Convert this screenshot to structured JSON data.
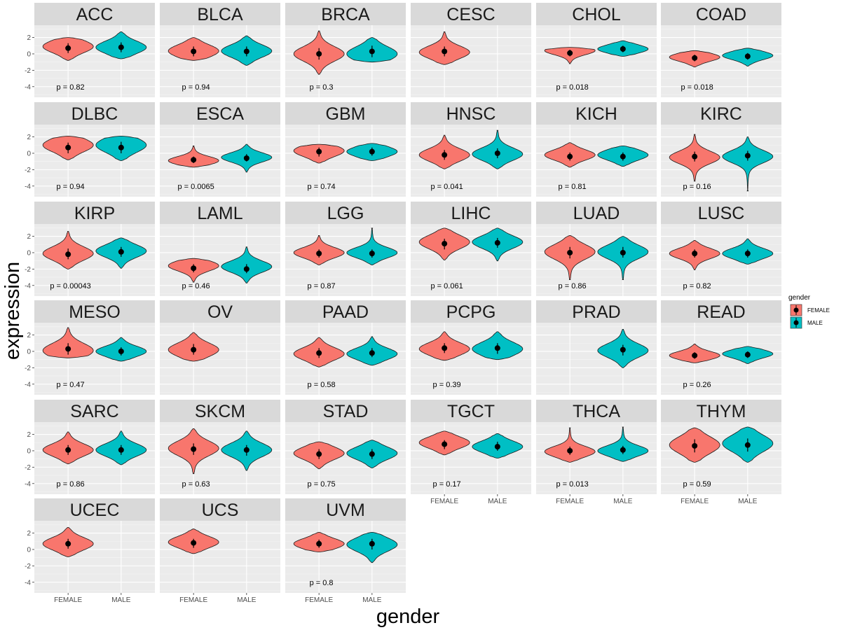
{
  "chart_data": {
    "type": "violin",
    "xlabel": "gender",
    "ylabel": "expression",
    "ylim": [
      -5.3,
      3.5
    ],
    "y_ticks": [
      2,
      0,
      -2,
      -4
    ],
    "y_tick_labels": [
      "2",
      "0",
      "-2",
      "-4"
    ],
    "x_categories": [
      "FEMALE",
      "MALE"
    ],
    "legend": {
      "title": "gender",
      "position": "right",
      "entries": [
        {
          "label": "FEMALE",
          "color": "#f8766d"
        },
        {
          "label": "MALE",
          "color": "#00bfc4"
        }
      ]
    },
    "facets": [
      {
        "name": "ACC",
        "p_label": "p = 0.82",
        "female": {
          "mean": 0.7,
          "sd_low": 0.1,
          "sd_high": 1.3,
          "min": -0.8,
          "max": 2.0,
          "peak": 0.9
        },
        "male": {
          "mean": 0.8,
          "sd_low": 0.2,
          "sd_high": 1.4,
          "min": -0.6,
          "max": 2.7,
          "peak": 0.8
        }
      },
      {
        "name": "BLCA",
        "p_label": "p = 0.94",
        "female": {
          "mean": 0.3,
          "sd_low": -0.3,
          "sd_high": 0.9,
          "min": -0.8,
          "max": 2.0,
          "peak": 0.35
        },
        "male": {
          "mean": 0.3,
          "sd_low": -0.3,
          "sd_high": 0.9,
          "min": -1.4,
          "max": 2.2,
          "peak": 0.35
        }
      },
      {
        "name": "BRCA",
        "p_label": "p = 0.3",
        "female": {
          "mean": 0.0,
          "sd_low": -0.7,
          "sd_high": 0.7,
          "min": -2.5,
          "max": 2.8,
          "peak": 0.0
        },
        "male": {
          "mean": 0.3,
          "sd_low": -0.4,
          "sd_high": 1.0,
          "min": -1.0,
          "max": 2.0,
          "peak": 0.0
        }
      },
      {
        "name": "CESC",
        "p_label": "",
        "female": {
          "mean": 0.3,
          "sd_low": -0.3,
          "sd_high": 0.9,
          "min": -1.3,
          "max": 2.7,
          "peak": 0.2
        }
      },
      {
        "name": "CHOL",
        "p_label": "p = 0.018",
        "female": {
          "mean": 0.1,
          "sd_low": -0.3,
          "sd_high": 0.5,
          "min": -1.2,
          "max": 0.8,
          "peak": 0.4
        },
        "male": {
          "mean": 0.6,
          "sd_low": 0.2,
          "sd_high": 1.0,
          "min": -0.3,
          "max": 1.6,
          "peak": 0.6
        }
      },
      {
        "name": "COAD",
        "p_label": "p = 0.018",
        "female": {
          "mean": -0.5,
          "sd_low": -0.9,
          "sd_high": -0.1,
          "min": -1.6,
          "max": 0.4,
          "peak": -0.4
        },
        "male": {
          "mean": -0.3,
          "sd_low": -0.7,
          "sd_high": 0.1,
          "min": -1.5,
          "max": 0.7,
          "peak": -0.2
        }
      },
      {
        "name": "DLBC",
        "p_label": "p = 0.94",
        "female": {
          "mean": 0.7,
          "sd_low": 0.0,
          "sd_high": 1.3,
          "min": -0.8,
          "max": 2.1,
          "peak": 1.0
        },
        "male": {
          "mean": 0.7,
          "sd_low": 0.0,
          "sd_high": 1.4,
          "min": -0.9,
          "max": 2.1,
          "peak": 1.0
        }
      },
      {
        "name": "ESCA",
        "p_label": "p = 0.0065",
        "female": {
          "mean": -0.8,
          "sd_low": -1.2,
          "sd_high": -0.4,
          "min": -1.7,
          "max": 0.9,
          "peak": -0.9
        },
        "male": {
          "mean": -0.6,
          "sd_low": -1.0,
          "sd_high": -0.1,
          "min": -2.3,
          "max": 1.1,
          "peak": -0.5
        }
      },
      {
        "name": "GBM",
        "p_label": "p = 0.74",
        "female": {
          "mean": 0.2,
          "sd_low": -0.4,
          "sd_high": 0.7,
          "min": -1.2,
          "max": 1.1,
          "peak": 0.3
        },
        "male": {
          "mean": 0.2,
          "sd_low": -0.3,
          "sd_high": 0.7,
          "min": -0.9,
          "max": 1.2,
          "peak": 0.2
        }
      },
      {
        "name": "HNSC",
        "p_label": "p = 0.041",
        "female": {
          "mean": -0.2,
          "sd_low": -0.8,
          "sd_high": 0.4,
          "min": -1.9,
          "max": 2.2,
          "peak": -0.2
        },
        "male": {
          "mean": 0.0,
          "sd_low": -0.6,
          "sd_high": 0.6,
          "min": -1.9,
          "max": 2.8,
          "peak": -0.1
        }
      },
      {
        "name": "KICH",
        "p_label": "p = 0.81",
        "female": {
          "mean": -0.4,
          "sd_low": -0.9,
          "sd_high": 0.1,
          "min": -1.7,
          "max": 1.3,
          "peak": -0.2
        },
        "male": {
          "mean": -0.4,
          "sd_low": -0.9,
          "sd_high": 0.1,
          "min": -1.6,
          "max": 0.9,
          "peak": -0.2
        }
      },
      {
        "name": "KIRC",
        "p_label": "p = 0.16",
        "female": {
          "mean": -0.4,
          "sd_low": -1.0,
          "sd_high": 0.2,
          "min": -3.4,
          "max": 2.3,
          "peak": -0.5
        },
        "male": {
          "mean": -0.3,
          "sd_low": -0.9,
          "sd_high": 0.3,
          "min": -4.6,
          "max": 2.0,
          "peak": -0.4
        }
      },
      {
        "name": "KIRP",
        "p_label": "p = 0.00043",
        "female": {
          "mean": -0.2,
          "sd_low": -0.8,
          "sd_high": 0.5,
          "min": -2.0,
          "max": 2.6,
          "peak": -0.1
        },
        "male": {
          "mean": 0.1,
          "sd_low": -0.5,
          "sd_high": 0.7,
          "min": -1.9,
          "max": 1.8,
          "peak": 0.2
        }
      },
      {
        "name": "LAML",
        "p_label": "p = 0.46",
        "female": {
          "mean": -1.9,
          "sd_low": -2.4,
          "sd_high": -1.4,
          "min": -3.6,
          "max": -0.7,
          "peak": -1.6
        },
        "male": {
          "mean": -2.0,
          "sd_low": -2.5,
          "sd_high": -1.4,
          "min": -3.7,
          "max": 0.7,
          "peak": -1.7
        }
      },
      {
        "name": "LGG",
        "p_label": "p = 0.87",
        "female": {
          "mean": -0.1,
          "sd_low": -0.6,
          "sd_high": 0.4,
          "min": -1.5,
          "max": 2.1,
          "peak": 0.0
        },
        "male": {
          "mean": -0.1,
          "sd_low": -0.6,
          "sd_high": 0.4,
          "min": -1.5,
          "max": 3.0,
          "peak": 0.0
        }
      },
      {
        "name": "LIHC",
        "p_label": "p = 0.061",
        "female": {
          "mean": 1.1,
          "sd_low": 0.4,
          "sd_high": 1.7,
          "min": -0.9,
          "max": 3.0,
          "peak": 1.3
        },
        "male": {
          "mean": 1.2,
          "sd_low": 0.6,
          "sd_high": 1.8,
          "min": -1.0,
          "max": 3.0,
          "peak": 1.3
        }
      },
      {
        "name": "LUAD",
        "p_label": "p = 0.86",
        "female": {
          "mean": 0.0,
          "sd_low": -0.7,
          "sd_high": 0.7,
          "min": -3.3,
          "max": 2.1,
          "peak": 0.1
        },
        "male": {
          "mean": 0.0,
          "sd_low": -0.6,
          "sd_high": 0.7,
          "min": -3.3,
          "max": 2.0,
          "peak": 0.1
        }
      },
      {
        "name": "LUSC",
        "p_label": "p = 0.82",
        "female": {
          "mean": -0.1,
          "sd_low": -0.6,
          "sd_high": 0.4,
          "min": -2.1,
          "max": 1.5,
          "peak": -0.1
        },
        "male": {
          "mean": -0.1,
          "sd_low": -0.6,
          "sd_high": 0.4,
          "min": -1.4,
          "max": 1.7,
          "peak": -0.1
        }
      },
      {
        "name": "MESO",
        "p_label": "p = 0.47",
        "female": {
          "mean": 0.3,
          "sd_low": -0.4,
          "sd_high": 1.0,
          "min": -0.8,
          "max": 2.9,
          "peak": 0.1
        },
        "male": {
          "mean": 0.0,
          "sd_low": -0.5,
          "sd_high": 0.5,
          "min": -1.2,
          "max": 1.7,
          "peak": 0.0
        }
      },
      {
        "name": "OV",
        "p_label": "",
        "female": {
          "mean": 0.2,
          "sd_low": -0.4,
          "sd_high": 0.9,
          "min": -1.2,
          "max": 2.3,
          "peak": 0.2
        }
      },
      {
        "name": "PAAD",
        "p_label": "p = 0.58",
        "female": {
          "mean": -0.2,
          "sd_low": -0.8,
          "sd_high": 0.4,
          "min": -1.9,
          "max": 1.7,
          "peak": -0.3
        },
        "male": {
          "mean": -0.2,
          "sd_low": -0.7,
          "sd_high": 0.4,
          "min": -1.7,
          "max": 1.8,
          "peak": -0.3
        }
      },
      {
        "name": "PCPG",
        "p_label": "p = 0.39",
        "female": {
          "mean": 0.4,
          "sd_low": -0.2,
          "sd_high": 1.0,
          "min": -1.1,
          "max": 2.4,
          "peak": 0.3
        },
        "male": {
          "mean": 0.4,
          "sd_low": -0.3,
          "sd_high": 1.0,
          "min": -1.0,
          "max": 2.4,
          "peak": 0.3
        }
      },
      {
        "name": "PRAD",
        "p_label": "",
        "male": {
          "mean": 0.2,
          "sd_low": -0.5,
          "sd_high": 0.8,
          "min": -2.0,
          "max": 2.7,
          "peak": 0.1
        }
      },
      {
        "name": "READ",
        "p_label": "p = 0.26",
        "female": {
          "mean": -0.5,
          "sd_low": -0.9,
          "sd_high": -0.1,
          "min": -1.4,
          "max": 0.9,
          "peak": -0.5
        },
        "male": {
          "mean": -0.4,
          "sd_low": -0.8,
          "sd_high": 0.0,
          "min": -1.5,
          "max": 0.6,
          "peak": -0.3
        }
      },
      {
        "name": "SARC",
        "p_label": "p = 0.86",
        "female": {
          "mean": 0.1,
          "sd_low": -0.5,
          "sd_high": 0.7,
          "min": -1.6,
          "max": 2.3,
          "peak": 0.1
        },
        "male": {
          "mean": 0.1,
          "sd_low": -0.5,
          "sd_high": 0.7,
          "min": -1.7,
          "max": 2.4,
          "peak": 0.1
        }
      },
      {
        "name": "SKCM",
        "p_label": "p = 0.63",
        "female": {
          "mean": 0.2,
          "sd_low": -0.5,
          "sd_high": 0.9,
          "min": -2.8,
          "max": 2.7,
          "peak": 0.3
        },
        "male": {
          "mean": 0.1,
          "sd_low": -0.6,
          "sd_high": 0.7,
          "min": -2.4,
          "max": 2.4,
          "peak": 0.1
        }
      },
      {
        "name": "STAD",
        "p_label": "p = 0.75",
        "female": {
          "mean": -0.4,
          "sd_low": -1.0,
          "sd_high": 0.2,
          "min": -2.2,
          "max": 1.1,
          "peak": -0.3
        },
        "male": {
          "mean": -0.4,
          "sd_low": -1.0,
          "sd_high": 0.2,
          "min": -2.1,
          "max": 1.3,
          "peak": -0.3
        }
      },
      {
        "name": "TGCT",
        "p_label": "p = 0.17",
        "female": {
          "mean": 0.8,
          "sd_low": 0.2,
          "sd_high": 1.3,
          "min": -0.5,
          "max": 2.4,
          "peak": 1.0
        },
        "male": {
          "mean": 0.5,
          "sd_low": 0.0,
          "sd_high": 1.1,
          "min": -0.9,
          "max": 2.1,
          "peak": 0.5
        }
      },
      {
        "name": "THCA",
        "p_label": "p = 0.013",
        "female": {
          "mean": 0.0,
          "sd_low": -0.5,
          "sd_high": 0.5,
          "min": -1.4,
          "max": 2.8,
          "peak": -0.1
        },
        "male": {
          "mean": 0.1,
          "sd_low": -0.4,
          "sd_high": 0.6,
          "min": -1.3,
          "max": 2.9,
          "peak": 0.0
        }
      },
      {
        "name": "THYM",
        "p_label": "p = 0.59",
        "female": {
          "mean": 0.6,
          "sd_low": -0.2,
          "sd_high": 1.4,
          "min": -1.4,
          "max": 2.8,
          "peak": 0.7
        },
        "male": {
          "mean": 0.7,
          "sd_low": -0.1,
          "sd_high": 1.5,
          "min": -1.4,
          "max": 2.9,
          "peak": 0.9
        }
      },
      {
        "name": "UCEC",
        "p_label": "",
        "female": {
          "mean": 0.7,
          "sd_low": 0.1,
          "sd_high": 1.3,
          "min": -0.9,
          "max": 2.7,
          "peak": 0.7
        }
      },
      {
        "name": "UCS",
        "p_label": "",
        "female": {
          "mean": 0.8,
          "sd_low": 0.2,
          "sd_high": 1.3,
          "min": -0.5,
          "max": 2.5,
          "peak": 0.9
        }
      },
      {
        "name": "UVM",
        "p_label": "p = 0.8",
        "female": {
          "mean": 0.7,
          "sd_low": 0.2,
          "sd_high": 1.2,
          "min": -0.3,
          "max": 2.1,
          "peak": 0.7
        },
        "male": {
          "mean": 0.7,
          "sd_low": 0.0,
          "sd_high": 1.3,
          "min": -1.6,
          "max": 2.1,
          "peak": 0.6
        }
      }
    ]
  }
}
